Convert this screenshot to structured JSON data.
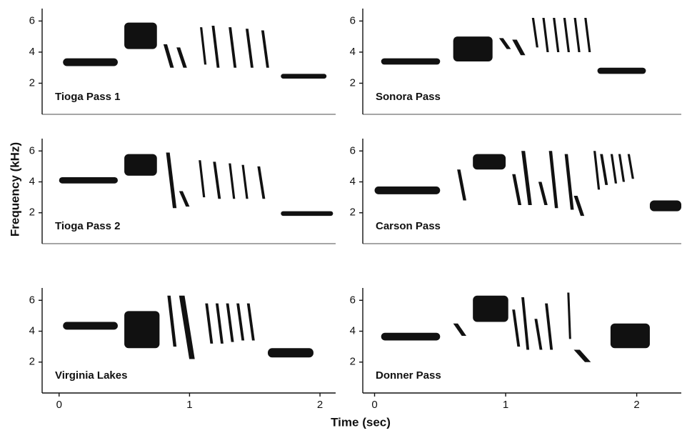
{
  "figure": {
    "y_label": "Frequency (kHz)",
    "x_label": "Time (sec)"
  },
  "chart_data": [
    {
      "type": "spectrogram",
      "label": "Tioga Pass 1",
      "xlim": [
        -0.13,
        2.12
      ],
      "ylim": [
        0,
        6.8
      ],
      "yticks": [
        2,
        4,
        6
      ],
      "syllables": [
        [
          0.03,
          0.45,
          3.1,
          3.6
        ],
        [
          0.5,
          0.75,
          4.2,
          5.9
        ],
        [
          0.8,
          0.88,
          3.0,
          4.5
        ],
        [
          0.9,
          0.98,
          3.0,
          4.3
        ],
        [
          1.08,
          1.13,
          3.2,
          5.6
        ],
        [
          1.17,
          1.23,
          3.0,
          5.7
        ],
        [
          1.3,
          1.36,
          3.0,
          5.6
        ],
        [
          1.43,
          1.49,
          3.0,
          5.5
        ],
        [
          1.55,
          1.61,
          3.0,
          5.4
        ],
        [
          1.7,
          2.05,
          2.3,
          2.6
        ]
      ]
    },
    {
      "type": "spectrogram",
      "label": "Sonora Pass",
      "xlim": [
        -0.09,
        2.34
      ],
      "ylim": [
        0,
        6.8
      ],
      "yticks": [
        2,
        4,
        6
      ],
      "syllables": [
        [
          0.05,
          0.5,
          3.2,
          3.6
        ],
        [
          0.6,
          0.9,
          3.4,
          5.0
        ],
        [
          0.95,
          1.04,
          4.2,
          4.9
        ],
        [
          1.05,
          1.15,
          3.8,
          4.8
        ],
        [
          1.2,
          1.25,
          4.3,
          6.2
        ],
        [
          1.28,
          1.33,
          4.0,
          6.2
        ],
        [
          1.36,
          1.41,
          4.0,
          6.2
        ],
        [
          1.44,
          1.49,
          4.0,
          6.2
        ],
        [
          1.52,
          1.57,
          4.0,
          6.2
        ],
        [
          1.6,
          1.65,
          4.0,
          6.2
        ],
        [
          1.7,
          2.07,
          2.6,
          3.0
        ]
      ]
    },
    {
      "type": "spectrogram",
      "label": "Tioga Pass 2",
      "xlim": [
        -0.13,
        2.12
      ],
      "ylim": [
        0,
        6.8
      ],
      "yticks": [
        2,
        4,
        6
      ],
      "syllables": [
        [
          0.0,
          0.45,
          3.9,
          4.3
        ],
        [
          0.5,
          0.75,
          4.4,
          5.8
        ],
        [
          0.82,
          0.9,
          2.3,
          5.9
        ],
        [
          0.92,
          1.0,
          2.4,
          3.4
        ],
        [
          1.07,
          1.12,
          3.0,
          5.4
        ],
        [
          1.18,
          1.24,
          2.9,
          5.3
        ],
        [
          1.3,
          1.35,
          2.9,
          5.2
        ],
        [
          1.4,
          1.45,
          2.9,
          5.1
        ],
        [
          1.52,
          1.58,
          2.9,
          5.0
        ],
        [
          1.7,
          2.1,
          1.8,
          2.1
        ]
      ]
    },
    {
      "type": "spectrogram",
      "label": "Carson Pass",
      "xlim": [
        -0.09,
        2.34
      ],
      "ylim": [
        0,
        6.8
      ],
      "yticks": [
        2,
        4,
        6
      ],
      "syllables": [
        [
          0.0,
          0.5,
          3.2,
          3.7
        ],
        [
          0.63,
          0.7,
          2.8,
          4.8
        ],
        [
          0.75,
          1.0,
          4.8,
          5.8
        ],
        [
          1.05,
          1.12,
          2.5,
          4.5
        ],
        [
          1.12,
          1.2,
          2.5,
          6.0
        ],
        [
          1.25,
          1.32,
          2.5,
          4.0
        ],
        [
          1.33,
          1.4,
          2.3,
          6.0
        ],
        [
          1.45,
          1.52,
          2.2,
          5.8
        ],
        [
          1.52,
          1.6,
          1.8,
          3.1
        ],
        [
          1.67,
          1.72,
          3.5,
          6.0
        ],
        [
          1.72,
          1.78,
          3.8,
          5.8
        ],
        [
          1.8,
          1.85,
          3.9,
          5.8
        ],
        [
          1.86,
          1.91,
          4.0,
          5.8
        ],
        [
          1.93,
          1.98,
          4.2,
          5.8
        ],
        [
          2.1,
          2.34,
          2.1,
          2.8
        ]
      ]
    },
    {
      "type": "spectrogram",
      "label": "Virginia Lakes",
      "xlim": [
        -0.13,
        2.12
      ],
      "ylim": [
        0,
        6.8
      ],
      "yticks": [
        2,
        4,
        6
      ],
      "xticks": [
        0,
        1,
        2
      ],
      "syllables": [
        [
          0.03,
          0.45,
          4.1,
          4.6
        ],
        [
          0.5,
          0.77,
          2.9,
          5.3
        ],
        [
          0.83,
          0.9,
          3.0,
          6.3
        ],
        [
          0.92,
          1.04,
          2.2,
          6.3
        ],
        [
          1.12,
          1.18,
          3.2,
          5.8
        ],
        [
          1.2,
          1.26,
          3.2,
          5.8
        ],
        [
          1.28,
          1.34,
          3.3,
          5.8
        ],
        [
          1.36,
          1.42,
          3.4,
          5.8
        ],
        [
          1.44,
          1.5,
          3.4,
          5.8
        ],
        [
          1.6,
          1.95,
          2.3,
          2.9
        ]
      ]
    },
    {
      "type": "spectrogram",
      "label": "Donner Pass",
      "xlim": [
        -0.09,
        2.34
      ],
      "ylim": [
        0,
        6.8
      ],
      "yticks": [
        2,
        4,
        6
      ],
      "xticks": [
        0,
        1,
        2
      ],
      "syllables": [
        [
          0.05,
          0.5,
          3.4,
          3.9
        ],
        [
          0.6,
          0.7,
          3.7,
          4.5
        ],
        [
          0.75,
          1.02,
          4.6,
          6.3
        ],
        [
          1.05,
          1.11,
          3.0,
          5.4
        ],
        [
          1.12,
          1.18,
          2.8,
          6.2
        ],
        [
          1.22,
          1.28,
          2.8,
          4.8
        ],
        [
          1.3,
          1.36,
          2.8,
          5.8
        ],
        [
          1.47,
          1.5,
          3.5,
          6.5
        ],
        [
          1.52,
          1.65,
          2.0,
          2.8
        ],
        [
          1.8,
          2.1,
          2.9,
          4.5
        ]
      ]
    }
  ]
}
